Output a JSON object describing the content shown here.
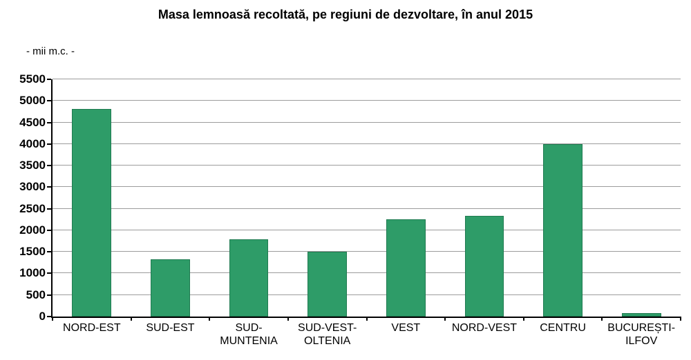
{
  "chart_data": {
    "type": "bar",
    "title": "Masa lemnoasă recoltată, pe regiuni de dezvoltare, în anul 2015",
    "unit_label": "- mii m.c. -",
    "categories": [
      "NORD-EST",
      "SUD-EST",
      "SUD-\nMUNTENIA",
      "SUD-VEST-\nOLTENIA",
      "VEST",
      "NORD-VEST",
      "CENTRU",
      "BUCUREȘTI-\nILFOV"
    ],
    "values": [
      4810,
      1320,
      1790,
      1510,
      2260,
      2330,
      3990,
      80
    ],
    "xlabel": "",
    "ylabel": "- mii m.c. -",
    "ylim": [
      0,
      5500
    ],
    "yticks": [
      0,
      500,
      1000,
      1500,
      2000,
      2500,
      3000,
      3500,
      4000,
      4500,
      5000,
      5500
    ],
    "grid": true,
    "legend": "none",
    "bar_color": "#2E9C68",
    "bar_border_color": "#1F7A50",
    "gridline_color": "#9b9b9b",
    "axis_color": "#000000",
    "text_color": "#000000",
    "background_color": "#ffffff"
  }
}
